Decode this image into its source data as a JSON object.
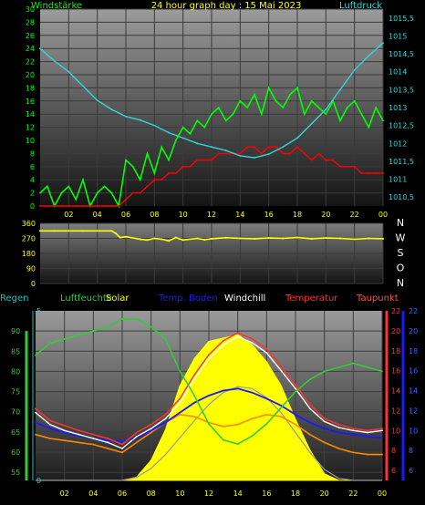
{
  "chart_data": [
    {
      "type": "line",
      "title": "24 hour graph day : 15 Mai 2023",
      "left_label": "Windstärke",
      "right_label": "Luftdruck",
      "x_ticks": [
        "02",
        "04",
        "06",
        "08",
        "10",
        "12",
        "14",
        "16",
        "18",
        "20",
        "22",
        "00"
      ],
      "y_left_range": [
        0,
        30
      ],
      "y_left_ticks": [
        "0",
        "2",
        "4",
        "6",
        "8",
        "10",
        "12",
        "14",
        "16",
        "18",
        "20",
        "22",
        "24",
        "26",
        "28",
        "30"
      ],
      "y_right_range": [
        1010.25,
        1015.75
      ],
      "y_right_ticks": [
        "1010,5",
        "1011",
        "1011,5",
        "1012",
        "1012,5",
        "1013",
        "1013,5",
        "1014",
        "1014,5",
        "1015",
        "1015,5"
      ],
      "series": [
        {
          "color": "#00ff00",
          "x": [
            0,
            0.5,
            1,
            1.5,
            2,
            2.5,
            3,
            3.5,
            4,
            4.5,
            5,
            5.5,
            6,
            6.5,
            7,
            7.5,
            8,
            8.5,
            9,
            9.5,
            10,
            10.5,
            11,
            11.5,
            12,
            12.5,
            13,
            13.5,
            14,
            14.5,
            15,
            15.5,
            16,
            16.5,
            17,
            17.5,
            18,
            18.5,
            19,
            19.5,
            20,
            20.5,
            21,
            21.5,
            22,
            22.5,
            23,
            23.5,
            24
          ],
          "values": [
            2,
            3,
            0,
            2,
            3,
            1,
            4,
            0,
            2,
            3,
            2,
            0,
            7,
            6,
            4,
            8,
            5,
            9,
            7,
            10,
            12,
            11,
            13,
            12,
            14,
            15,
            13,
            14,
            16,
            15,
            17,
            14,
            18,
            16,
            15,
            17,
            18,
            14,
            16,
            15,
            14,
            16,
            13,
            15,
            16,
            14,
            12,
            15,
            13
          ]
        },
        {
          "color": "#ff0000",
          "x": [
            0,
            0.5,
            1,
            1.5,
            2,
            2.5,
            3,
            3.5,
            4,
            4.5,
            5,
            5.5,
            6,
            6.5,
            7,
            7.5,
            8,
            8.5,
            9,
            9.5,
            10,
            10.5,
            11,
            11.5,
            12,
            12.5,
            13,
            13.5,
            14,
            14.5,
            15,
            15.5,
            16,
            16.5,
            17,
            17.5,
            18,
            18.5,
            19,
            19.5,
            20,
            20.5,
            21,
            21.5,
            22,
            22.5,
            23,
            23.5,
            24
          ],
          "values": [
            0,
            0,
            0,
            0,
            0,
            0,
            0,
            0,
            0,
            0,
            0,
            0,
            1,
            2,
            2,
            3,
            4,
            4,
            5,
            5,
            6,
            6,
            7,
            7,
            7,
            8,
            8,
            8,
            8,
            9,
            9,
            8,
            9,
            9,
            8,
            8,
            9,
            8,
            7,
            8,
            7,
            7,
            6,
            6,
            6,
            5,
            5,
            5,
            5
          ]
        },
        {
          "color": "#33d6d6",
          "x": [
            0,
            1,
            2,
            3,
            4,
            5,
            6,
            7,
            8,
            9,
            10,
            11,
            12,
            13,
            14,
            15,
            16,
            17,
            18,
            19,
            20,
            21,
            22,
            23,
            24
          ],
          "values": [
            1014.65,
            1014.3,
            1014.0,
            1013.6,
            1013.2,
            1012.95,
            1012.75,
            1012.65,
            1012.5,
            1012.3,
            1012.15,
            1012.0,
            1011.9,
            1011.8,
            1011.65,
            1011.6,
            1011.7,
            1011.9,
            1012.15,
            1012.55,
            1012.95,
            1013.5,
            1014.05,
            1014.45,
            1014.8
          ]
        }
      ]
    },
    {
      "type": "scatter",
      "ylim": [
        0,
        360
      ],
      "y_ticks": [
        "0",
        "90",
        "180",
        "270",
        "360"
      ],
      "direction_labels": [
        "N",
        "W",
        "S",
        "O",
        "N"
      ],
      "x_ticks": [
        "02",
        "04",
        "06",
        "08",
        "10",
        "12",
        "14",
        "16",
        "18",
        "20",
        "22",
        "00"
      ],
      "series": [
        {
          "color": "#ffff00",
          "x": [
            0,
            1,
            2,
            3,
            4,
            5,
            5.3,
            5.6,
            6,
            7,
            7.5,
            8,
            8.5,
            9,
            9.5,
            10,
            11,
            11.5,
            12,
            13,
            14,
            15,
            16,
            17,
            18,
            19,
            20,
            21,
            22,
            23,
            24
          ],
          "values": [
            315,
            315,
            315,
            315,
            315,
            315,
            300,
            275,
            280,
            265,
            260,
            270,
            265,
            255,
            275,
            260,
            270,
            262,
            268,
            274,
            270,
            268,
            272,
            270,
            275,
            268,
            272,
            270,
            265,
            270,
            268
          ]
        }
      ]
    },
    {
      "type": "line",
      "legend": [
        "Regen",
        "Luftfeuchte",
        "Solar",
        "Temp. Boden",
        "Windchill",
        "Temperatur",
        "Taupunkt"
      ],
      "x_ticks": [
        "02",
        "04",
        "06",
        "08",
        "10",
        "12",
        "14",
        "16",
        "18",
        "20",
        "22",
        "00"
      ],
      "humidity_axis": {
        "range": [
          53,
          95
        ],
        "ticks": [
          "55",
          "60",
          "65",
          "70",
          "75",
          "80",
          "85",
          "90"
        ]
      },
      "rain_axis": {
        "range": [
          0,
          5
        ],
        "ticks": [
          "0",
          "5"
        ]
      },
      "temperature_axis": {
        "range": [
          5,
          22
        ],
        "ticks": [
          "6",
          "8",
          "10",
          "12",
          "14",
          "16",
          "18",
          "20",
          "22"
        ]
      },
      "series": [
        {
          "color": "#33cc33",
          "x": [
            0,
            1,
            2,
            3,
            4,
            5,
            6,
            7,
            8,
            9,
            10,
            11,
            12,
            13,
            14,
            15,
            16,
            17,
            18,
            19,
            20,
            21,
            22,
            23,
            24
          ],
          "values": [
            84,
            87,
            88,
            89,
            90,
            91,
            93,
            93,
            91,
            88,
            80,
            74,
            67,
            63,
            62,
            64,
            67,
            71,
            75,
            78,
            80,
            81,
            82,
            81,
            80
          ]
        },
        {
          "color": "#ff3333",
          "x": [
            0,
            1,
            2,
            3,
            4,
            5,
            6,
            7,
            8,
            9,
            10,
            11,
            12,
            13,
            14,
            15,
            16,
            17,
            18,
            19,
            20,
            21,
            22,
            23,
            24
          ],
          "values": [
            12.2,
            11.0,
            10.5,
            10.0,
            9.6,
            9.2,
            8.6,
            9.8,
            10.6,
            11.6,
            13.2,
            15.6,
            17.6,
            19.0,
            19.8,
            19.2,
            18.2,
            16.4,
            14.6,
            12.6,
            11.2,
            10.6,
            10.2,
            10.0,
            10.2
          ]
        },
        {
          "color": "#ffffff",
          "x": [
            0,
            1,
            2,
            3,
            4,
            5,
            6,
            7,
            8,
            9,
            10,
            11,
            12,
            13,
            14,
            15,
            16,
            17,
            18,
            19,
            20,
            21,
            22,
            23,
            24
          ],
          "values": [
            11.8,
            10.6,
            10.0,
            9.6,
            9.2,
            8.8,
            8.2,
            9.4,
            10.2,
            11.2,
            12.8,
            15.2,
            17.2,
            18.6,
            19.4,
            18.8,
            17.8,
            16.0,
            14.2,
            12.2,
            10.9,
            10.3,
            10.0,
            9.8,
            10.0
          ]
        },
        {
          "color": "#1a1aff",
          "x": [
            0,
            1,
            2,
            3,
            4,
            5,
            6,
            7,
            8,
            9,
            10,
            11,
            12,
            13,
            14,
            15,
            16,
            17,
            18,
            19,
            20,
            21,
            22,
            23,
            24
          ],
          "values": [
            10.8,
            10.2,
            9.8,
            9.5,
            9.2,
            9.0,
            8.9,
            9.3,
            10.0,
            10.8,
            11.8,
            12.8,
            13.5,
            14.0,
            14.2,
            13.8,
            13.2,
            12.5,
            11.6,
            10.8,
            10.2,
            9.8,
            9.6,
            9.4,
            9.3
          ]
        },
        {
          "color": "#ff8800",
          "x": [
            0,
            1,
            2,
            3,
            4,
            5,
            6,
            7,
            8,
            9,
            10,
            11,
            12,
            13,
            14,
            15,
            16,
            17,
            18,
            19,
            20,
            21,
            22,
            23,
            24
          ],
          "values": [
            9.6,
            9.2,
            9.0,
            8.8,
            8.6,
            8.2,
            7.8,
            8.8,
            9.8,
            10.8,
            11.6,
            11.4,
            10.8,
            10.4,
            10.6,
            11.2,
            11.6,
            11.4,
            10.6,
            9.6,
            8.8,
            8.2,
            7.8,
            7.6,
            7.6
          ]
        },
        {
          "color": "#999999",
          "x": [
            0,
            1,
            2,
            3,
            4,
            5,
            6,
            7,
            8,
            9,
            10,
            11,
            12,
            13,
            14,
            15,
            16,
            17,
            18,
            19,
            20,
            21,
            22,
            23,
            24
          ],
          "values": [
            5,
            5,
            5,
            5,
            5,
            5,
            5,
            5.3,
            6.2,
            7.6,
            9.3,
            11.0,
            12.6,
            13.8,
            14.4,
            14.2,
            13.3,
            11.8,
            9.8,
            7.8,
            6.1,
            5.2,
            5,
            5,
            5
          ]
        },
        {
          "color": "#ffff00",
          "x": [
            0,
            1,
            2,
            3,
            4,
            5,
            6,
            7,
            8,
            9,
            10,
            11,
            12,
            13,
            14,
            15,
            16,
            17,
            18,
            19,
            20,
            21,
            22,
            23,
            24
          ],
          "values": [
            0,
            0,
            0,
            0,
            0,
            0,
            0,
            0.1,
            0.6,
            1.5,
            2.8,
            3.6,
            4.1,
            4.2,
            4.3,
            4.0,
            3.5,
            2.8,
            1.8,
            0.9,
            0.2,
            0,
            0,
            0,
            0
          ]
        }
      ]
    }
  ]
}
